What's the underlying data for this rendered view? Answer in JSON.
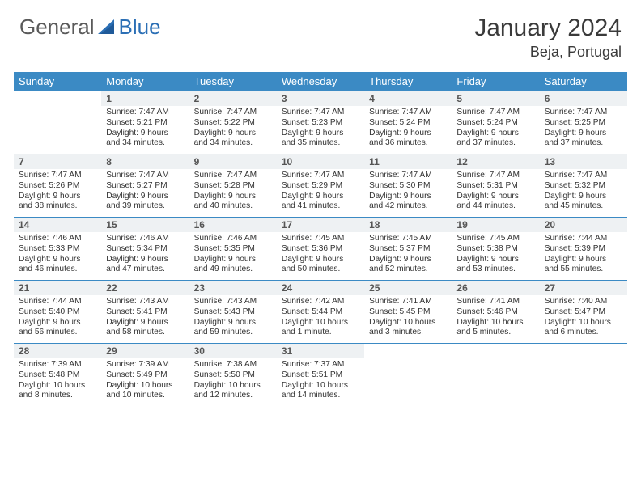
{
  "logo": {
    "text1": "General",
    "text2": "Blue"
  },
  "title": "January 2024",
  "location": "Beja, Portugal",
  "colors": {
    "header_bg": "#3b8ac4",
    "header_text": "#ffffff",
    "daynum_bg": "#eef1f3",
    "border": "#3b8ac4",
    "logo_blue": "#2b6fb5",
    "logo_gray": "#5a5a5a"
  },
  "weekdays": [
    "Sunday",
    "Monday",
    "Tuesday",
    "Wednesday",
    "Thursday",
    "Friday",
    "Saturday"
  ],
  "weeks": [
    [
      {
        "n": "",
        "sr": "",
        "ss": "",
        "dl1": "",
        "dl2": "",
        "e": true
      },
      {
        "n": "1",
        "sr": "Sunrise: 7:47 AM",
        "ss": "Sunset: 5:21 PM",
        "dl1": "Daylight: 9 hours",
        "dl2": "and 34 minutes."
      },
      {
        "n": "2",
        "sr": "Sunrise: 7:47 AM",
        "ss": "Sunset: 5:22 PM",
        "dl1": "Daylight: 9 hours",
        "dl2": "and 34 minutes."
      },
      {
        "n": "3",
        "sr": "Sunrise: 7:47 AM",
        "ss": "Sunset: 5:23 PM",
        "dl1": "Daylight: 9 hours",
        "dl2": "and 35 minutes."
      },
      {
        "n": "4",
        "sr": "Sunrise: 7:47 AM",
        "ss": "Sunset: 5:24 PM",
        "dl1": "Daylight: 9 hours",
        "dl2": "and 36 minutes."
      },
      {
        "n": "5",
        "sr": "Sunrise: 7:47 AM",
        "ss": "Sunset: 5:24 PM",
        "dl1": "Daylight: 9 hours",
        "dl2": "and 37 minutes."
      },
      {
        "n": "6",
        "sr": "Sunrise: 7:47 AM",
        "ss": "Sunset: 5:25 PM",
        "dl1": "Daylight: 9 hours",
        "dl2": "and 37 minutes."
      }
    ],
    [
      {
        "n": "7",
        "sr": "Sunrise: 7:47 AM",
        "ss": "Sunset: 5:26 PM",
        "dl1": "Daylight: 9 hours",
        "dl2": "and 38 minutes."
      },
      {
        "n": "8",
        "sr": "Sunrise: 7:47 AM",
        "ss": "Sunset: 5:27 PM",
        "dl1": "Daylight: 9 hours",
        "dl2": "and 39 minutes."
      },
      {
        "n": "9",
        "sr": "Sunrise: 7:47 AM",
        "ss": "Sunset: 5:28 PM",
        "dl1": "Daylight: 9 hours",
        "dl2": "and 40 minutes."
      },
      {
        "n": "10",
        "sr": "Sunrise: 7:47 AM",
        "ss": "Sunset: 5:29 PM",
        "dl1": "Daylight: 9 hours",
        "dl2": "and 41 minutes."
      },
      {
        "n": "11",
        "sr": "Sunrise: 7:47 AM",
        "ss": "Sunset: 5:30 PM",
        "dl1": "Daylight: 9 hours",
        "dl2": "and 42 minutes."
      },
      {
        "n": "12",
        "sr": "Sunrise: 7:47 AM",
        "ss": "Sunset: 5:31 PM",
        "dl1": "Daylight: 9 hours",
        "dl2": "and 44 minutes."
      },
      {
        "n": "13",
        "sr": "Sunrise: 7:47 AM",
        "ss": "Sunset: 5:32 PM",
        "dl1": "Daylight: 9 hours",
        "dl2": "and 45 minutes."
      }
    ],
    [
      {
        "n": "14",
        "sr": "Sunrise: 7:46 AM",
        "ss": "Sunset: 5:33 PM",
        "dl1": "Daylight: 9 hours",
        "dl2": "and 46 minutes."
      },
      {
        "n": "15",
        "sr": "Sunrise: 7:46 AM",
        "ss": "Sunset: 5:34 PM",
        "dl1": "Daylight: 9 hours",
        "dl2": "and 47 minutes."
      },
      {
        "n": "16",
        "sr": "Sunrise: 7:46 AM",
        "ss": "Sunset: 5:35 PM",
        "dl1": "Daylight: 9 hours",
        "dl2": "and 49 minutes."
      },
      {
        "n": "17",
        "sr": "Sunrise: 7:45 AM",
        "ss": "Sunset: 5:36 PM",
        "dl1": "Daylight: 9 hours",
        "dl2": "and 50 minutes."
      },
      {
        "n": "18",
        "sr": "Sunrise: 7:45 AM",
        "ss": "Sunset: 5:37 PM",
        "dl1": "Daylight: 9 hours",
        "dl2": "and 52 minutes."
      },
      {
        "n": "19",
        "sr": "Sunrise: 7:45 AM",
        "ss": "Sunset: 5:38 PM",
        "dl1": "Daylight: 9 hours",
        "dl2": "and 53 minutes."
      },
      {
        "n": "20",
        "sr": "Sunrise: 7:44 AM",
        "ss": "Sunset: 5:39 PM",
        "dl1": "Daylight: 9 hours",
        "dl2": "and 55 minutes."
      }
    ],
    [
      {
        "n": "21",
        "sr": "Sunrise: 7:44 AM",
        "ss": "Sunset: 5:40 PM",
        "dl1": "Daylight: 9 hours",
        "dl2": "and 56 minutes."
      },
      {
        "n": "22",
        "sr": "Sunrise: 7:43 AM",
        "ss": "Sunset: 5:41 PM",
        "dl1": "Daylight: 9 hours",
        "dl2": "and 58 minutes."
      },
      {
        "n": "23",
        "sr": "Sunrise: 7:43 AM",
        "ss": "Sunset: 5:43 PM",
        "dl1": "Daylight: 9 hours",
        "dl2": "and 59 minutes."
      },
      {
        "n": "24",
        "sr": "Sunrise: 7:42 AM",
        "ss": "Sunset: 5:44 PM",
        "dl1": "Daylight: 10 hours",
        "dl2": "and 1 minute."
      },
      {
        "n": "25",
        "sr": "Sunrise: 7:41 AM",
        "ss": "Sunset: 5:45 PM",
        "dl1": "Daylight: 10 hours",
        "dl2": "and 3 minutes."
      },
      {
        "n": "26",
        "sr": "Sunrise: 7:41 AM",
        "ss": "Sunset: 5:46 PM",
        "dl1": "Daylight: 10 hours",
        "dl2": "and 5 minutes."
      },
      {
        "n": "27",
        "sr": "Sunrise: 7:40 AM",
        "ss": "Sunset: 5:47 PM",
        "dl1": "Daylight: 10 hours",
        "dl2": "and 6 minutes."
      }
    ],
    [
      {
        "n": "28",
        "sr": "Sunrise: 7:39 AM",
        "ss": "Sunset: 5:48 PM",
        "dl1": "Daylight: 10 hours",
        "dl2": "and 8 minutes."
      },
      {
        "n": "29",
        "sr": "Sunrise: 7:39 AM",
        "ss": "Sunset: 5:49 PM",
        "dl1": "Daylight: 10 hours",
        "dl2": "and 10 minutes."
      },
      {
        "n": "30",
        "sr": "Sunrise: 7:38 AM",
        "ss": "Sunset: 5:50 PM",
        "dl1": "Daylight: 10 hours",
        "dl2": "and 12 minutes."
      },
      {
        "n": "31",
        "sr": "Sunrise: 7:37 AM",
        "ss": "Sunset: 5:51 PM",
        "dl1": "Daylight: 10 hours",
        "dl2": "and 14 minutes."
      },
      {
        "n": "",
        "sr": "",
        "ss": "",
        "dl1": "",
        "dl2": "",
        "e": true
      },
      {
        "n": "",
        "sr": "",
        "ss": "",
        "dl1": "",
        "dl2": "",
        "e": true
      },
      {
        "n": "",
        "sr": "",
        "ss": "",
        "dl1": "",
        "dl2": "",
        "e": true
      }
    ]
  ]
}
